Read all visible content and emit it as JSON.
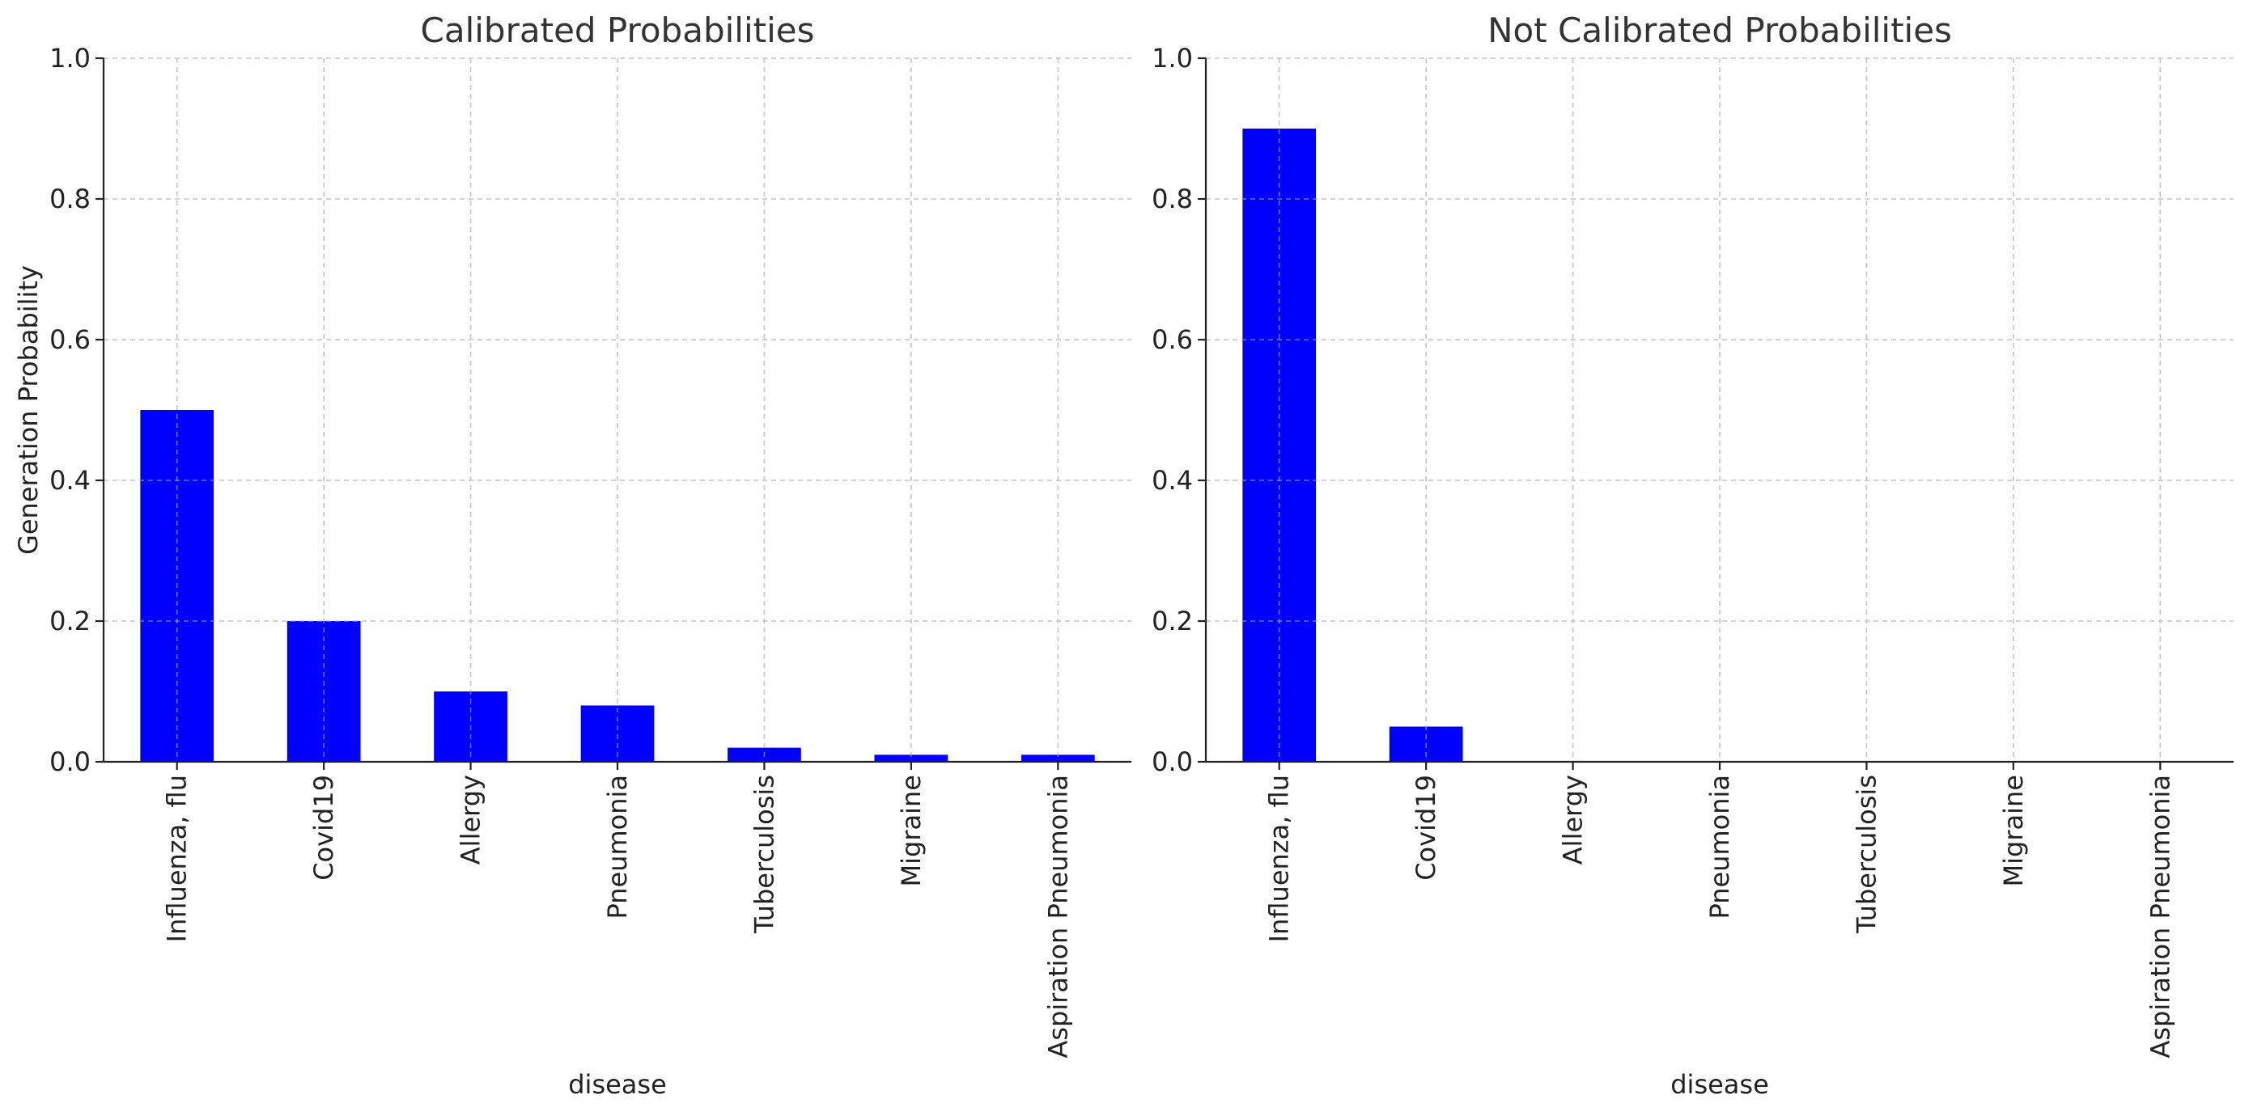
{
  "chart_data": [
    {
      "type": "bar",
      "title": "Calibrated Probabilities",
      "xlabel": "disease",
      "ylabel": "Generation Probability",
      "categories": [
        "Influenza, flu",
        "Covid19",
        "Allergy",
        "Pneumonia",
        "Tuberculosis",
        "Migraine",
        "Aspiration Pneumonia"
      ],
      "values": [
        0.5,
        0.2,
        0.1,
        0.08,
        0.02,
        0.01,
        0.01
      ],
      "ylim": [
        0,
        1.0
      ],
      "yticks": [
        "0.0",
        "0.2",
        "0.4",
        "0.6",
        "0.8",
        "1.0"
      ],
      "grid": true,
      "bar_color": "#0000ff"
    },
    {
      "type": "bar",
      "title": "Not Calibrated Probabilities",
      "xlabel": "disease",
      "ylabel": "",
      "categories": [
        "Influenza, flu",
        "Covid19",
        "Allergy",
        "Pneumonia",
        "Tuberculosis",
        "Migraine",
        "Aspiration Pneumonia"
      ],
      "values": [
        0.9,
        0.05,
        0,
        0,
        0,
        0,
        0
      ],
      "ylim": [
        0,
        1.0
      ],
      "yticks": [
        "0.0",
        "0.2",
        "0.4",
        "0.6",
        "0.8",
        "1.0"
      ],
      "grid": true,
      "bar_color": "#0000ff"
    }
  ]
}
